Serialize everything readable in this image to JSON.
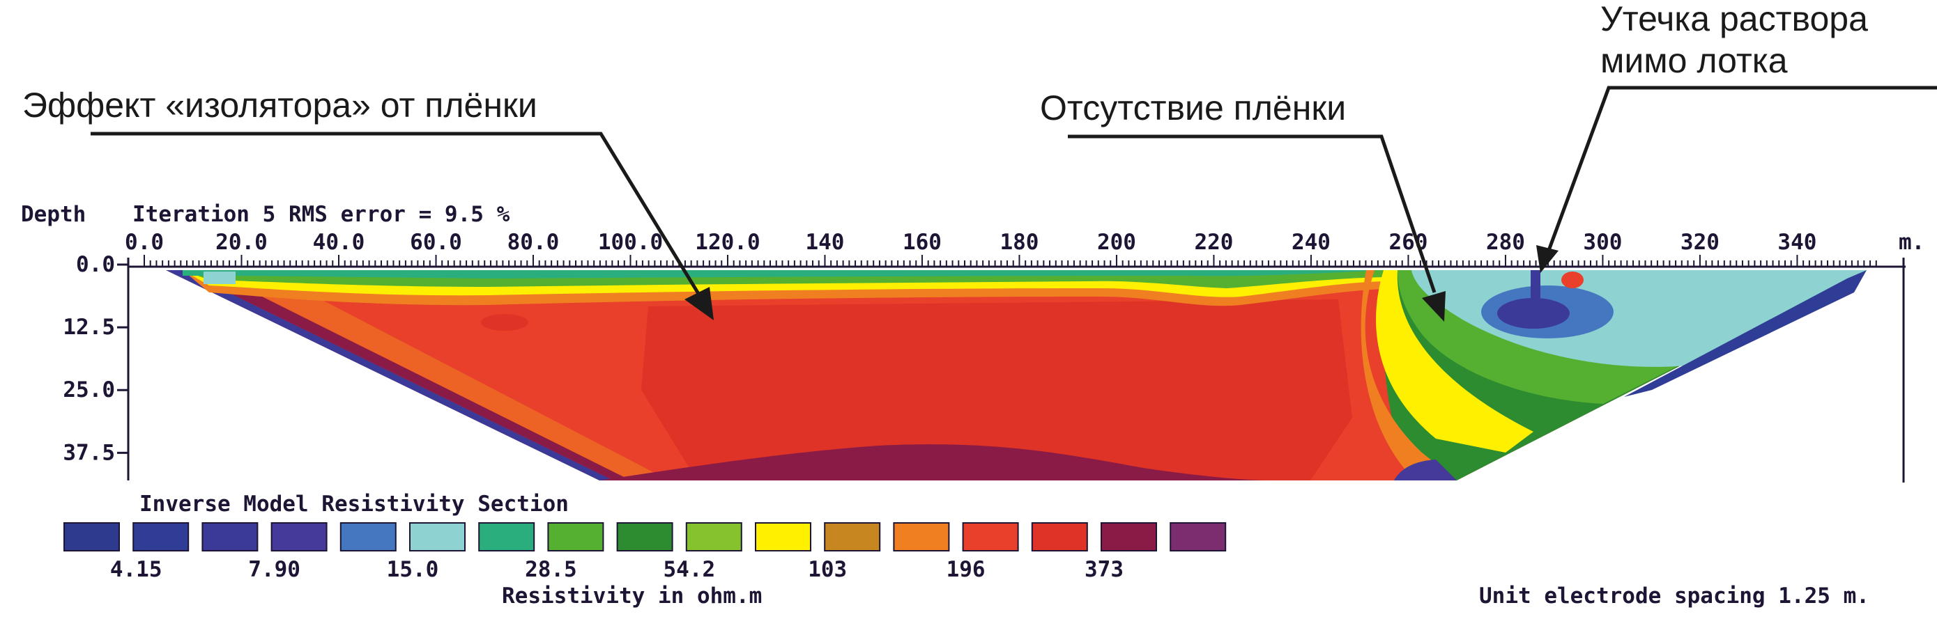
{
  "annotations": {
    "left": "Эффект «изолятора» от плёнки",
    "middle": "Отсутствие плёнки",
    "right_line1": "Утечка раствора",
    "right_line2": "мимо лотка"
  },
  "chart_data": {
    "type": "heatmap",
    "title": "Iteration 5 RMS error = 9.5 %",
    "depth_label": "Depth",
    "x_unit": "m.",
    "x_ticks": [
      "0.0",
      "20.0",
      "40.0",
      "60.0",
      "80.0",
      "100.0",
      "120.0",
      "140",
      "160",
      "180",
      "200",
      "220",
      "240",
      "260",
      "280",
      "300",
      "320",
      "340"
    ],
    "x_tick_values": [
      0,
      20,
      40,
      60,
      80,
      100,
      120,
      140,
      160,
      180,
      200,
      220,
      240,
      260,
      280,
      300,
      320,
      340
    ],
    "xlim": [
      0,
      357
    ],
    "y_ticks": [
      "0.0",
      "12.5",
      "25.0",
      "37.5"
    ],
    "y_tick_values": [
      0,
      12.5,
      25,
      37.5
    ],
    "ylim": [
      0,
      43
    ],
    "section_title": "Inverse Model Resistivity Section",
    "colorbar_label": "Resistivity in ohm.m",
    "colorbar_tick_labels": [
      "4.15",
      "7.90",
      "15.0",
      "28.5",
      "54.2",
      "103",
      "196",
      "373"
    ],
    "colorbar_colors": [
      "#2e3a8e",
      "#2f3d96",
      "#3c3a98",
      "#45399a",
      "#4477c0",
      "#8ed3d1",
      "#2aae7e",
      "#55b032",
      "#2e8c30",
      "#86c22e",
      "#fff000",
      "#c88620",
      "#f07f22",
      "#e8402a",
      "#de3326",
      "#8a1a46",
      "#7b2d6f"
    ],
    "footer_note": "Unit electrode spacing 1.25 m."
  }
}
